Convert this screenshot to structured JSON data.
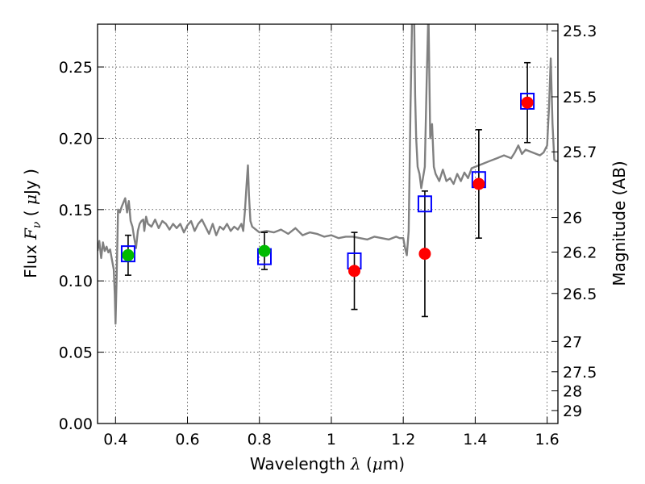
{
  "chart_data": {
    "type": "scatter",
    "xlabel": "Wavelength  λ (μm)",
    "ylabel": "Flux  Fν  ( μJy )",
    "ylabel_right": "Magnitude (AB)",
    "xlim": [
      0.35,
      1.63
    ],
    "ylim": [
      0.0,
      0.28
    ],
    "grid": true,
    "x_ticks": [
      0.4,
      0.6,
      0.8,
      1.0,
      1.2,
      1.4,
      1.6
    ],
    "x_tick_labels": [
      "0.4",
      "0.6",
      "0.8",
      "1",
      "1.2",
      "1.4",
      "1.6"
    ],
    "y_ticks": [
      0.0,
      0.05,
      0.1,
      0.15,
      0.2,
      0.25
    ],
    "y_tick_labels": [
      "0.00",
      "0.05",
      "0.10",
      "0.15",
      "0.20",
      "0.25"
    ],
    "right_ticks": [
      {
        "label": "25.3",
        "flux": 0.2754
      },
      {
        "label": "25.5",
        "flux": 0.2291
      },
      {
        "label": "25.7",
        "flux": 0.1905
      },
      {
        "label": "26",
        "flux": 0.1445
      },
      {
        "label": "26.2",
        "flux": 0.1202
      },
      {
        "label": "26.5",
        "flux": 0.0912
      },
      {
        "label": "27",
        "flux": 0.0575
      },
      {
        "label": "27.5",
        "flux": 0.0363
      },
      {
        "label": "28",
        "flux": 0.0229
      },
      {
        "label": "29",
        "flux": 0.0091
      }
    ],
    "model_spectrum": {
      "x": [
        0.35,
        0.355,
        0.36,
        0.365,
        0.37,
        0.375,
        0.38,
        0.385,
        0.39,
        0.395,
        0.398,
        0.4,
        0.403,
        0.407,
        0.412,
        0.417,
        0.422,
        0.427,
        0.432,
        0.437,
        0.442,
        0.447,
        0.452,
        0.457,
        0.462,
        0.467,
        0.472,
        0.477,
        0.48,
        0.485,
        0.49,
        0.5,
        0.51,
        0.52,
        0.53,
        0.54,
        0.55,
        0.56,
        0.57,
        0.58,
        0.59,
        0.6,
        0.61,
        0.62,
        0.63,
        0.64,
        0.65,
        0.66,
        0.67,
        0.68,
        0.69,
        0.7,
        0.71,
        0.72,
        0.73,
        0.74,
        0.75,
        0.755,
        0.76,
        0.765,
        0.768,
        0.771,
        0.775,
        0.78,
        0.79,
        0.8,
        0.82,
        0.84,
        0.86,
        0.88,
        0.9,
        0.92,
        0.94,
        0.96,
        0.98,
        1.0,
        1.02,
        1.04,
        1.06,
        1.08,
        1.1,
        1.12,
        1.14,
        1.16,
        1.18,
        1.19,
        1.2,
        1.205,
        1.21,
        1.215,
        1.22,
        1.225,
        1.23,
        1.233,
        1.236,
        1.24,
        1.245,
        1.25,
        1.26,
        1.265,
        1.27,
        1.275,
        1.28,
        1.285,
        1.29,
        1.3,
        1.31,
        1.32,
        1.33,
        1.34,
        1.35,
        1.36,
        1.37,
        1.38,
        1.39,
        1.4,
        1.42,
        1.44,
        1.46,
        1.48,
        1.5,
        1.51,
        1.52,
        1.53,
        1.54,
        1.56,
        1.58,
        1.59,
        1.6,
        1.605,
        1.61,
        1.615,
        1.62,
        1.625,
        1.63
      ],
      "y": [
        0.121,
        0.128,
        0.116,
        0.127,
        0.121,
        0.124,
        0.12,
        0.122,
        0.115,
        0.108,
        0.09,
        0.07,
        0.1,
        0.15,
        0.148,
        0.152,
        0.155,
        0.158,
        0.148,
        0.156,
        0.142,
        0.138,
        0.13,
        0.123,
        0.135,
        0.14,
        0.142,
        0.143,
        0.135,
        0.145,
        0.14,
        0.138,
        0.143,
        0.137,
        0.142,
        0.14,
        0.136,
        0.14,
        0.137,
        0.14,
        0.134,
        0.139,
        0.142,
        0.135,
        0.14,
        0.143,
        0.138,
        0.133,
        0.14,
        0.132,
        0.138,
        0.136,
        0.14,
        0.135,
        0.138,
        0.136,
        0.14,
        0.135,
        0.15,
        0.17,
        0.181,
        0.16,
        0.142,
        0.138,
        0.136,
        0.134,
        0.135,
        0.134,
        0.136,
        0.133,
        0.137,
        0.132,
        0.134,
        0.133,
        0.131,
        0.132,
        0.13,
        0.131,
        0.131,
        0.13,
        0.129,
        0.131,
        0.13,
        0.129,
        0.131,
        0.13,
        0.13,
        0.123,
        0.118,
        0.135,
        0.22,
        0.29,
        0.29,
        0.23,
        0.2,
        0.18,
        0.175,
        0.165,
        0.18,
        0.24,
        0.29,
        0.2,
        0.21,
        0.18,
        0.175,
        0.17,
        0.178,
        0.17,
        0.172,
        0.168,
        0.175,
        0.17,
        0.176,
        0.172,
        0.179,
        0.18,
        0.182,
        0.184,
        0.186,
        0.188,
        0.186,
        0.19,
        0.195,
        0.189,
        0.192,
        0.19,
        0.188,
        0.19,
        0.195,
        0.22,
        0.256,
        0.21,
        0.185,
        0.184,
        0.184
      ]
    },
    "model_photometry": {
      "x": [
        0.435,
        0.814,
        1.064,
        1.26,
        1.41,
        1.545
      ],
      "y": [
        0.119,
        0.117,
        0.114,
        0.154,
        0.171,
        0.226
      ]
    },
    "series": [
      {
        "color": "#00bb00",
        "x": [
          0.435,
          0.814
        ],
        "y": [
          0.118,
          0.121
        ],
        "err": [
          0.014,
          0.013
        ]
      },
      {
        "color": "#ff0000",
        "x": [
          1.064,
          1.26,
          1.41,
          1.545
        ],
        "y": [
          0.107,
          0.119,
          0.168,
          0.225
        ],
        "err": [
          0.027,
          0.044,
          0.038,
          0.028
        ]
      }
    ],
    "colors": {
      "spectrum": "#808080",
      "model_box": "#0000ff",
      "errorbar": "#000000"
    }
  }
}
